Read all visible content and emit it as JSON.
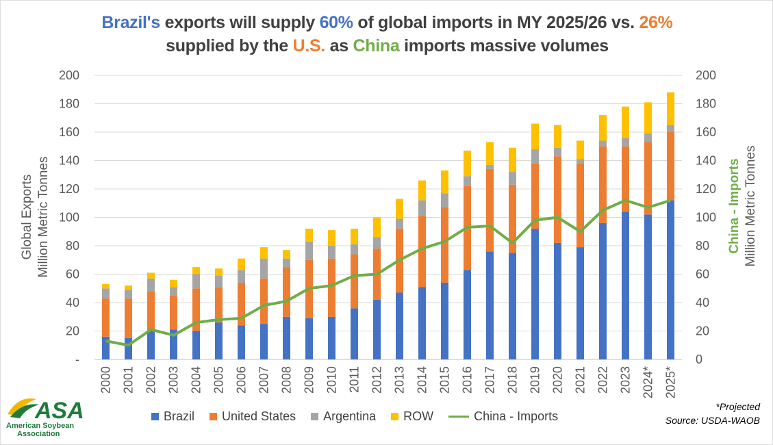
{
  "title": {
    "line1": [
      {
        "t": "Brazil's",
        "c": "blue"
      },
      {
        "t": " exports will supply ",
        "c": ""
      },
      {
        "t": "60%",
        "c": "blue"
      },
      {
        "t": " of global imports in MY 2025/26 vs. ",
        "c": ""
      },
      {
        "t": "26%",
        "c": "orange"
      }
    ],
    "line2": [
      {
        "t": "supplied by the ",
        "c": ""
      },
      {
        "t": "U.S.",
        "c": "orange"
      },
      {
        "t": " as ",
        "c": ""
      },
      {
        "t": "China",
        "c": "green"
      },
      {
        "t": " imports massive volumes",
        "c": ""
      }
    ]
  },
  "footnote": "*Projected",
  "source": "Source: USDA-WAOB",
  "logo": {
    "text": "ASA",
    "name": "American Soybean Association"
  },
  "chart_data": {
    "type": "bar",
    "stacked": true,
    "categories": [
      "2000",
      "2001",
      "2002",
      "2003",
      "2004",
      "2005",
      "2006",
      "2007",
      "2008",
      "2009",
      "2010",
      "2011",
      "2012",
      "2013",
      "2014",
      "2015",
      "2016",
      "2017",
      "2018",
      "2019",
      "2020",
      "2021",
      "2022",
      "2023",
      "2024*",
      "2025*"
    ],
    "ylabel": [
      "Global Exports",
      "Million Metric Tonnes"
    ],
    "y2label": [
      "China - Imports",
      "Million Metric Tonnes"
    ],
    "ylim": [
      0,
      200
    ],
    "y2lim": [
      0,
      200
    ],
    "yticks": [
      "-",
      "20",
      "40",
      "60",
      "80",
      "100",
      "120",
      "140",
      "160",
      "180",
      "200"
    ],
    "y2ticks": [
      "0",
      "20",
      "40",
      "60",
      "80",
      "100",
      "120",
      "140",
      "160",
      "180",
      "200"
    ],
    "grid": true,
    "legend": "bottom",
    "series": [
      {
        "name": "Brazil",
        "kind": "bar",
        "color": "#4472C4",
        "values": [
          16,
          15,
          20,
          21,
          20,
          26,
          24,
          25,
          30,
          29,
          30,
          36,
          42,
          47,
          51,
          54,
          63,
          76,
          75,
          92,
          82,
          79,
          96,
          104,
          102,
          112
        ]
      },
      {
        "name": "United States",
        "kind": "bar",
        "color": "#ED7D31",
        "values": [
          27,
          28,
          28,
          24,
          30,
          25,
          30,
          32,
          35,
          41,
          41,
          38,
          36,
          45,
          50,
          53,
          59,
          58,
          48,
          46,
          61,
          59,
          54,
          46,
          51,
          48
        ]
      },
      {
        "name": "Argentina",
        "kind": "bar",
        "color": "#A5A5A5",
        "values": [
          7,
          6,
          9,
          6,
          10,
          8,
          9,
          14,
          6,
          13,
          9,
          7,
          8,
          7,
          11,
          10,
          7,
          3,
          9,
          10,
          6,
          3,
          4,
          6,
          6,
          5
        ]
      },
      {
        "name": "ROW",
        "kind": "bar",
        "color": "#FFC000",
        "values": [
          3,
          3,
          4,
          5,
          5,
          5,
          8,
          8,
          6,
          9,
          11,
          11,
          14,
          14,
          14,
          16,
          18,
          16,
          17,
          18,
          16,
          13,
          18,
          22,
          22,
          23
        ]
      },
      {
        "name": "China - Imports",
        "kind": "line",
        "axis": "right",
        "color": "#70AD47",
        "values": [
          13,
          10,
          21,
          17,
          26,
          28,
          29,
          38,
          41,
          50,
          52,
          59,
          60,
          70,
          78,
          83,
          93,
          94,
          82,
          98,
          100,
          90,
          105,
          112,
          107,
          112
        ]
      }
    ]
  }
}
